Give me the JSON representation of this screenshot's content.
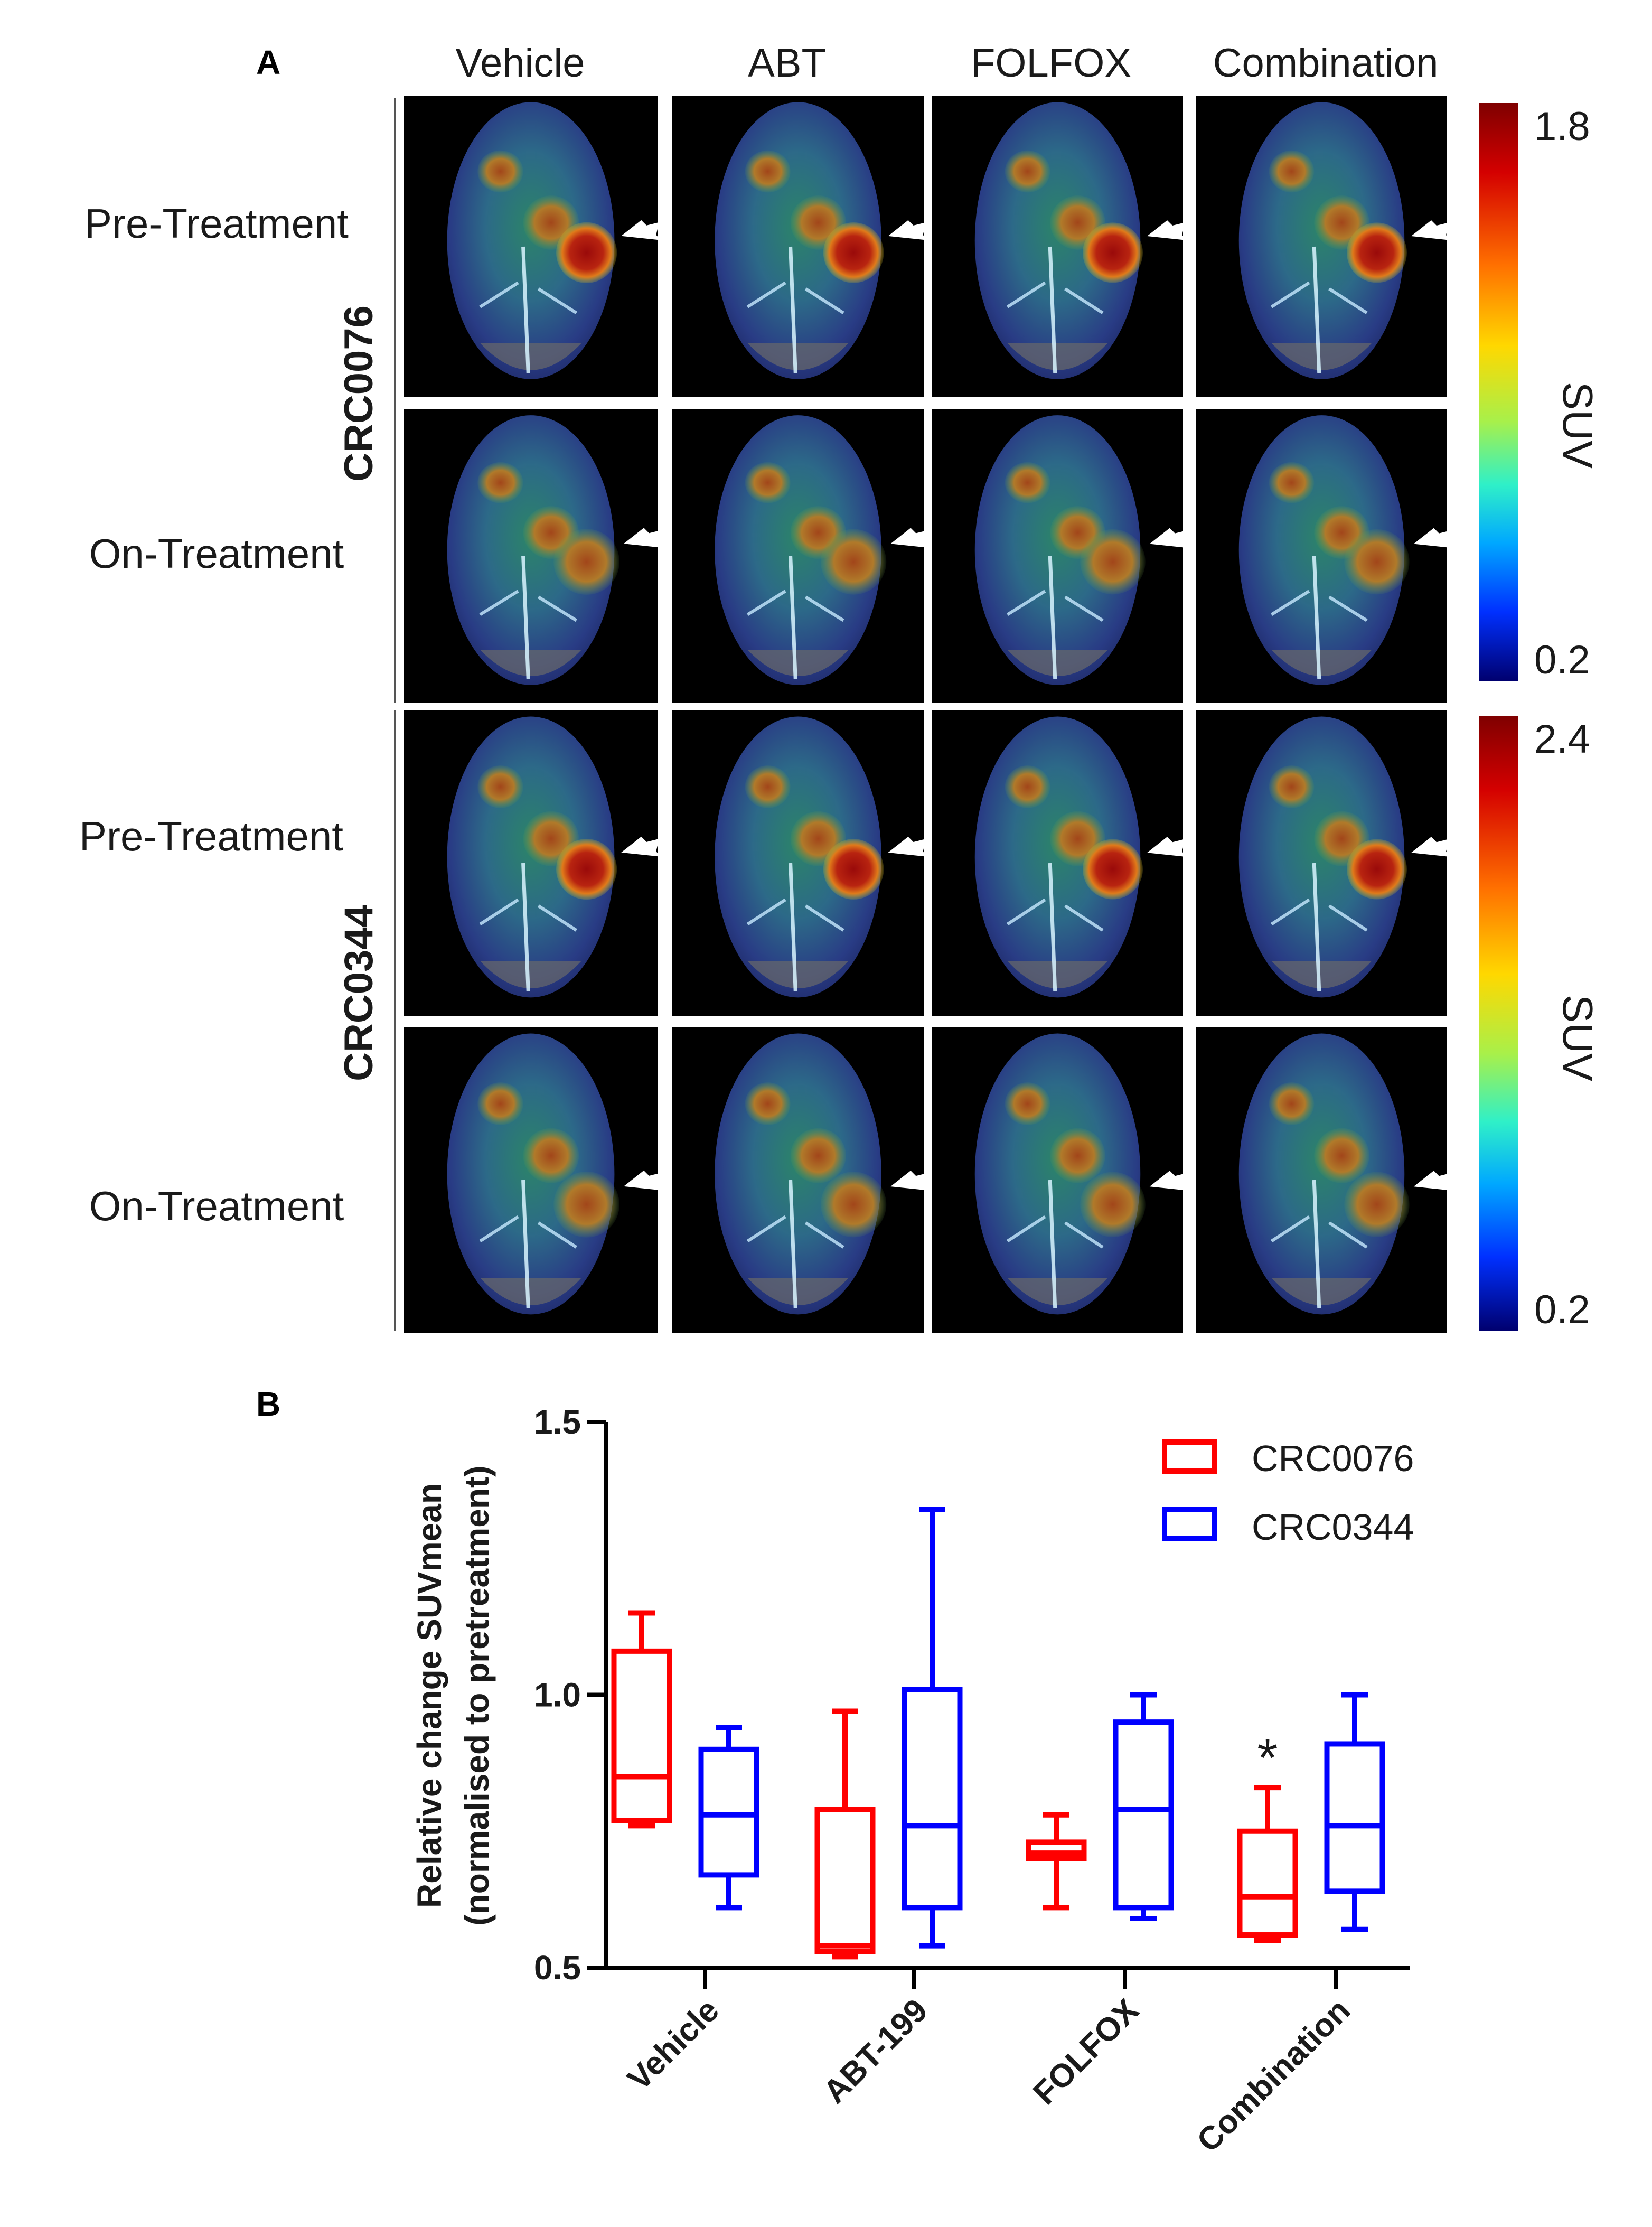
{
  "panel_a": {
    "label": "A",
    "columns": [
      "Vehicle",
      "ABT",
      "FOLFOX",
      "Combination"
    ],
    "cohorts": [
      {
        "name": "CRC0076",
        "rows": [
          "Pre-Treatment",
          "On-Treatment"
        ],
        "colorbar": {
          "max_label": "1.8",
          "min_label": "0.2",
          "axis_label": "SUV"
        }
      },
      {
        "name": "CRC0344",
        "rows": [
          "Pre-Treatment",
          "On-Treatment"
        ],
        "colorbar": {
          "max_label": "2.4",
          "min_label": "0.2",
          "axis_label": "SUV"
        }
      }
    ],
    "colors": {
      "image_bg": "#000000",
      "tumor_hot": "#8b0000",
      "cool": "#1a237e",
      "arrow": "#ffffff"
    }
  },
  "chart_data": {
    "type": "box",
    "panel_label": "B",
    "title": "",
    "ylabel_line1": "Relative change SUVmean",
    "ylabel_line2": "(normalised to pretreatment)",
    "xlabel": "",
    "categories": [
      "Vehicle",
      "ABT-199",
      "FOLFOX",
      "Combination"
    ],
    "ylim": [
      0.5,
      1.5
    ],
    "yticks": [
      0.5,
      1.0,
      1.5
    ],
    "ytick_labels": [
      "0.5",
      "1.0",
      "1.5"
    ],
    "legend_position": "top-right",
    "series": [
      {
        "name": "CRC0076",
        "color": "#ff0000",
        "boxes": [
          {
            "min": 0.76,
            "q1": 0.77,
            "median": 0.85,
            "q3": 1.08,
            "max": 1.15
          },
          {
            "min": 0.52,
            "q1": 0.53,
            "median": 0.54,
            "q3": 0.79,
            "max": 0.97
          },
          {
            "min": 0.61,
            "q1": 0.7,
            "median": 0.71,
            "q3": 0.73,
            "max": 0.78
          },
          {
            "min": 0.55,
            "q1": 0.56,
            "median": 0.63,
            "q3": 0.75,
            "max": 0.83
          }
        ]
      },
      {
        "name": "CRC0344",
        "color": "#0000ff",
        "boxes": [
          {
            "min": 0.61,
            "q1": 0.67,
            "median": 0.78,
            "q3": 0.9,
            "max": 0.94
          },
          {
            "min": 0.54,
            "q1": 0.61,
            "median": 0.76,
            "q3": 1.01,
            "max": 1.34
          },
          {
            "min": 0.59,
            "q1": 0.61,
            "median": 0.79,
            "q3": 0.95,
            "max": 1.0
          },
          {
            "min": 0.57,
            "q1": 0.64,
            "median": 0.76,
            "q3": 0.91,
            "max": 1.0
          }
        ]
      }
    ],
    "annotations": [
      {
        "text": "*",
        "category": "Combination",
        "series": "CRC0076",
        "y": 0.89
      }
    ]
  }
}
